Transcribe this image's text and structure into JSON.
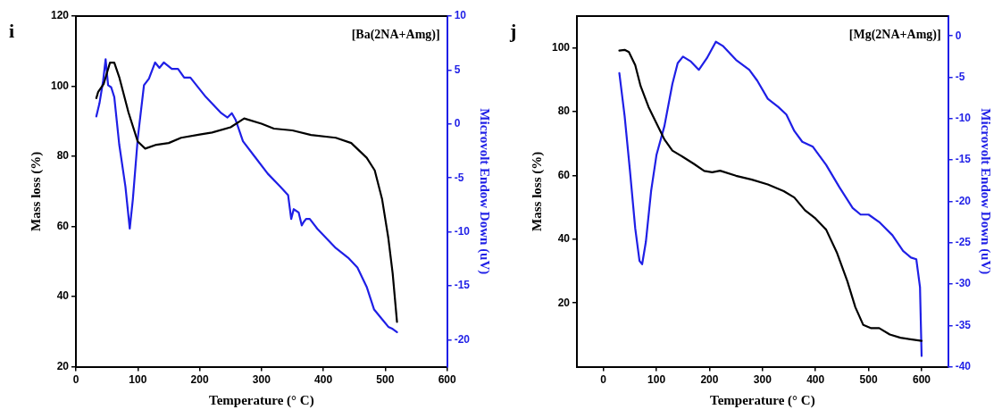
{
  "chart_data": [
    {
      "type": "line",
      "title": "i",
      "xlabel": "Temperature (° C)",
      "ylabel": "Mass loss (%)",
      "y2label": "Microvolt Endow Down (uV)",
      "annotations": [
        "[Ba(2NA+Amg)]"
      ],
      "xlim": [
        0,
        600
      ],
      "xticks": [
        0,
        100,
        200,
        300,
        400,
        500,
        600
      ],
      "ylim": [
        20,
        120
      ],
      "yticks": [
        20,
        40,
        60,
        80,
        100,
        120
      ],
      "y2lim": [
        -22.5,
        10
      ],
      "y2ticks": [
        -20,
        -15,
        -10,
        -5,
        0,
        5,
        10
      ],
      "grid": false,
      "legend": false,
      "marker": "none",
      "line_style": "solid",
      "series": [
        {
          "color": "#000000",
          "x": [
            33,
            36,
            45,
            55,
            62,
            70,
            85,
            100,
            112,
            130,
            150,
            170,
            200,
            220,
            250,
            272,
            300,
            320,
            350,
            380,
            420,
            445,
            470,
            483,
            495,
            505,
            512,
            519
          ],
          "values": [
            96.6,
            98.4,
            100.7,
            106.7,
            106.7,
            102.6,
            92.5,
            84.2,
            82.2,
            83.3,
            83.8,
            85.3,
            86.2,
            86.8,
            88.3,
            90.8,
            89.3,
            87.9,
            87.4,
            86.1,
            85.3,
            83.8,
            79.6,
            76.0,
            67.7,
            56.7,
            46.6,
            32.8
          ]
        },
        {
          "color": "#1f1fe6",
          "axis": "y2",
          "x": [
            33,
            38,
            44,
            48,
            52,
            57,
            62,
            70,
            80,
            87,
            92,
            100,
            110,
            118,
            128,
            135,
            142,
            155,
            165,
            175,
            185,
            210,
            235,
            245,
            252,
            258,
            270,
            290,
            310,
            330,
            343,
            348,
            352,
            360,
            365,
            368,
            372,
            378,
            390,
            420,
            440,
            455,
            470,
            482,
            495,
            505,
            512,
            519
          ],
          "values": [
            0.7,
            1.9,
            4.0,
            6.0,
            3.6,
            3.4,
            2.5,
            -1.9,
            -5.8,
            -9.7,
            -7.0,
            -1.3,
            3.6,
            4.2,
            5.7,
            5.2,
            5.7,
            5.1,
            5.1,
            4.3,
            4.3,
            2.5,
            1.0,
            0.6,
            1.0,
            0.4,
            -1.6,
            -3.1,
            -4.6,
            -5.8,
            -6.6,
            -8.8,
            -7.9,
            -8.2,
            -9.4,
            -9.1,
            -8.8,
            -8.8,
            -9.7,
            -11.5,
            -12.4,
            -13.3,
            -15.1,
            -17.2,
            -18.1,
            -18.8,
            -19.0,
            -19.3
          ]
        }
      ]
    },
    {
      "type": "line",
      "title": "j",
      "xlabel": "Temperature (° C)",
      "ylabel": "Mass loss (%)",
      "y2label": "Microvolt Endow Down (uV)",
      "annotations": [
        "[Mg(2NA+Amg)]"
      ],
      "xlim": [
        -50,
        650
      ],
      "xticks": [
        0,
        100,
        200,
        300,
        400,
        500,
        600
      ],
      "ylim": [
        0,
        110
      ],
      "yticks": [
        20,
        40,
        60,
        80,
        100
      ],
      "y2lim": [
        -40,
        2.4
      ],
      "y2ticks": [
        -40,
        -35,
        -30,
        -25,
        -20,
        -15,
        -10,
        -5,
        0
      ],
      "grid": false,
      "legend": false,
      "marker": "none",
      "line_style": "solid",
      "series": [
        {
          "color": "#000000",
          "x": [
            30,
            40,
            48,
            60,
            70,
            85,
            100,
            115,
            130,
            150,
            170,
            190,
            205,
            220,
            250,
            280,
            310,
            340,
            360,
            380,
            400,
            420,
            440,
            460,
            475,
            490,
            505,
            520,
            540,
            560,
            600
          ],
          "values": [
            99.2,
            99.4,
            98.7,
            94.6,
            88.1,
            81.5,
            76.4,
            71.3,
            67.8,
            65.8,
            63.7,
            61.4,
            61.0,
            61.5,
            59.9,
            58.7,
            57.2,
            55.1,
            53.1,
            49.1,
            46.5,
            43.0,
            35.9,
            26.8,
            18.7,
            13.1,
            12.1,
            12.1,
            10.1,
            9.1,
            8.1
          ]
        },
        {
          "color": "#1f1fe6",
          "axis": "y2",
          "x": [
            30,
            40,
            50,
            60,
            68,
            73,
            80,
            90,
            100,
            115,
            130,
            140,
            150,
            165,
            180,
            195,
            212,
            225,
            250,
            275,
            290,
            310,
            330,
            345,
            360,
            375,
            395,
            420,
            445,
            470,
            485,
            500,
            520,
            545,
            565,
            580,
            590,
            597,
            600
          ],
          "values": [
            -4.5,
            -9.7,
            -16.3,
            -23.3,
            -27.2,
            -27.6,
            -24.9,
            -18.7,
            -14.4,
            -10.9,
            -5.8,
            -3.3,
            -2.5,
            -3.1,
            -4.1,
            -2.7,
            -0.7,
            -1.2,
            -2.9,
            -4.1,
            -5.4,
            -7.6,
            -8.6,
            -9.5,
            -11.5,
            -12.8,
            -13.4,
            -15.6,
            -18.3,
            -20.8,
            -21.6,
            -21.6,
            -22.5,
            -24.1,
            -26.0,
            -26.8,
            -27.0,
            -30.4,
            -38.7
          ]
        }
      ]
    }
  ]
}
